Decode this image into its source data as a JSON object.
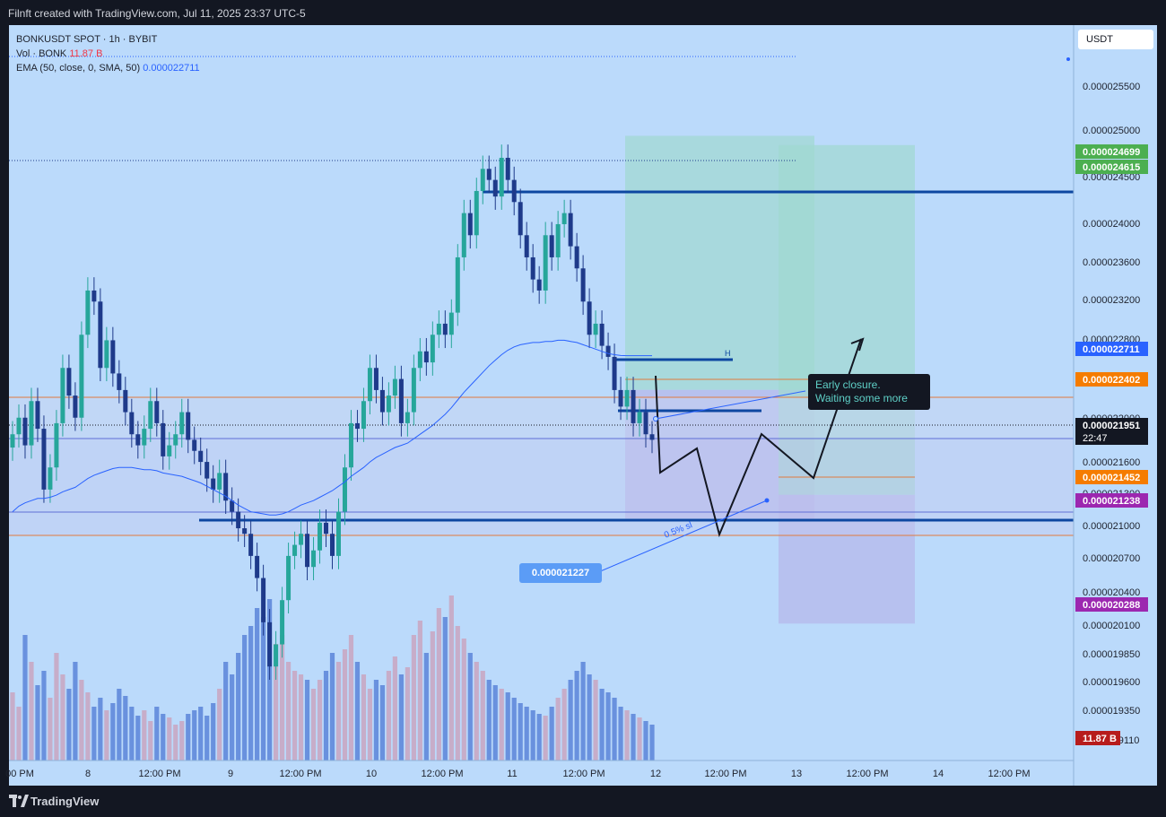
{
  "header": {
    "text": "Filnft created with TradingView.com, Jul 11, 2025 23:37 UTC-5"
  },
  "footer": {
    "brand": "TradingView"
  },
  "legend": {
    "symbol": "BONKUSDT SPOT · 1h · BYBIT",
    "vol_label": "Vol · BONK",
    "vol_value": "11.87 B",
    "ema_label": "EMA (50, close, 0, SMA, 50)",
    "ema_value": "0.000022711"
  },
  "currency_button": "USDT",
  "callout": {
    "line1": "Early closure.",
    "line2": "Waiting some more"
  },
  "price_bubble": "0.000021227",
  "ruler_label": "0.5% sl",
  "pattern_label": "H",
  "colors": {
    "background": "#bbdafb",
    "up": "#26a69a",
    "down": "#1e3a8a",
    "level_line": "#0d47a1",
    "profit_zone": "#9fd8d0",
    "loss_zone": "#b5b7ea"
  },
  "chart_data": {
    "type": "candlestick",
    "symbol": "BONKUSDT",
    "timeframe": "1h",
    "exchange": "BYBIT",
    "x_ticks": [
      "00 PM",
      "8",
      "12:00 PM",
      "9",
      "12:00 PM",
      "10",
      "12:00 PM",
      "11",
      "12:00 PM",
      "12",
      "12:00 PM",
      "13",
      "12:00 PM",
      "14",
      "12:00 PM"
    ],
    "y_ticks": [
      "0.000025500",
      "0.000025000",
      "0.000024500",
      "0.000024000",
      "0.000023600",
      "0.000023200",
      "0.000022800",
      "0.000022400",
      "0.000022000",
      "0.000021600",
      "0.000021300",
      "0.000021000",
      "0.000020700",
      "0.000020400",
      "0.000020100",
      "0.000019850",
      "0.000019600",
      "0.000019350",
      "0.000019110"
    ],
    "price_labels": [
      {
        "value": "0.000024699",
        "color": "#4caf50"
      },
      {
        "value": "0.000024615",
        "color": "#4caf50"
      },
      {
        "value": "0.000022711",
        "color": "#2962ff"
      },
      {
        "value": "0.000022402",
        "color": "#f57c00"
      },
      {
        "value": "0.000021951",
        "sub": "22:47",
        "color": "#131722"
      },
      {
        "value": "0.000021452",
        "color": "#f57c00"
      },
      {
        "value": "0.000021238",
        "color": "#9c27b0"
      },
      {
        "value": "0.000020288",
        "color": "#9c27b0"
      },
      {
        "value": "11.87 B",
        "color": "#b71c1c"
      }
    ],
    "closes": [
      22000,
      22150,
      21900,
      22300,
      22050,
      21500,
      21700,
      22100,
      22600,
      22350,
      22150,
      22900,
      23300,
      23200,
      22600,
      22850,
      22550,
      22400,
      22200,
      22000,
      21900,
      22050,
      22300,
      22100,
      21800,
      21900,
      22000,
      22200,
      21950,
      21850,
      21750,
      21600,
      21500,
      21650,
      21400,
      21300,
      21150,
      21100,
      20900,
      20700,
      20300,
      19900,
      20100,
      20500,
      20900,
      21000,
      21100,
      20800,
      20950,
      21200,
      21100,
      20900,
      21300,
      21700,
      22100,
      22050,
      22300,
      22600,
      22400,
      22200,
      22350,
      22500,
      22100,
      22200,
      22600,
      22750,
      22650,
      22900,
      23000,
      22900,
      23100,
      23600,
      24000,
      23800,
      24200,
      24400,
      24300,
      24150,
      24500,
      24300,
      24100,
      23800,
      23600,
      23400,
      23300,
      23800,
      23600,
      23900,
      24000,
      23700,
      23500,
      23200,
      22900,
      23000,
      22800,
      22700,
      22400,
      22250,
      22400,
      22100,
      22200,
      22000,
      21950
    ],
    "ema": [
      21300,
      21350,
      21380,
      21400,
      21420,
      21420,
      21430,
      21450,
      21480,
      21500,
      21520,
      21560,
      21600,
      21630,
      21650,
      21670,
      21690,
      21700,
      21700,
      21700,
      21690,
      21680,
      21680,
      21670,
      21650,
      21640,
      21630,
      21620,
      21600,
      21580,
      21560,
      21530,
      21500,
      21470,
      21440,
      21400,
      21360,
      21330,
      21300,
      21290,
      21280,
      21270,
      21270,
      21280,
      21300,
      21330,
      21360,
      21380,
      21400,
      21430,
      21460,
      21490,
      21530,
      21570,
      21620,
      21660,
      21700,
      21750,
      21790,
      21820,
      21850,
      21880,
      21900,
      21920,
      21960,
      22000,
      22040,
      22080,
      22130,
      22180,
      22240,
      22310,
      22380,
      22440,
      22500,
      22560,
      22620,
      22670,
      22720,
      22760,
      22790,
      22810,
      22820,
      22830,
      22830,
      22840,
      22840,
      22850,
      22850,
      22840,
      22830,
      22810,
      22790,
      22770,
      22750,
      22730,
      22720,
      22712,
      22711,
      22711,
      22711,
      22711,
      22711
    ],
    "volume": [
      38,
      30,
      70,
      55,
      42,
      50,
      35,
      60,
      48,
      40,
      55,
      45,
      38,
      30,
      35,
      28,
      32,
      40,
      36,
      30,
      25,
      28,
      22,
      30,
      26,
      24,
      20,
      22,
      26,
      28,
      30,
      25,
      32,
      40,
      55,
      48,
      60,
      70,
      75,
      85,
      80,
      90,
      65,
      70,
      55,
      50,
      48,
      45,
      40,
      45,
      50,
      60,
      55,
      62,
      70,
      55,
      48,
      40,
      45,
      42,
      50,
      58,
      48,
      52,
      70,
      78,
      60,
      72,
      85,
      80,
      92,
      75,
      68,
      60,
      55,
      50,
      45,
      42,
      40,
      38,
      35,
      32,
      30,
      28,
      26,
      25,
      30,
      35,
      40,
      45,
      50,
      55,
      48,
      45,
      40,
      38,
      35,
      30,
      28,
      26,
      24,
      22,
      20
    ],
    "levels": [
      {
        "name": "resistance",
        "price": 24550
      },
      {
        "name": "support",
        "price": 21050
      },
      {
        "name": "h-line",
        "price": 22450
      },
      {
        "name": "entry",
        "price": 22402
      },
      {
        "name": "tp-line",
        "price": 21452
      }
    ],
    "zones": [
      {
        "name": "long-profit",
        "top": 24699,
        "bottom": 22402
      },
      {
        "name": "long-loss",
        "top": 22402,
        "bottom": 21238
      },
      {
        "name": "plan-profit",
        "top": 24615,
        "bottom": 21452
      },
      {
        "name": "plan-loss",
        "top": 21452,
        "bottom": 20288
      }
    ],
    "y_range": [
      19050,
      25700
    ]
  }
}
